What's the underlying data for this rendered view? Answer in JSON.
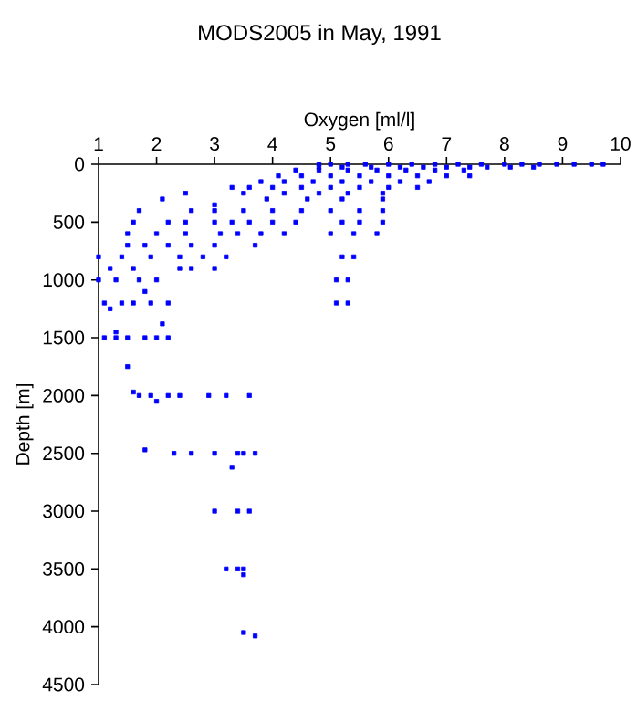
{
  "chart_data": {
    "type": "scatter",
    "title": "MODS2005 in May, 1991",
    "xlabel": "Oxygen [ml/l]",
    "ylabel": "Depth [m]",
    "xlim": [
      1,
      10
    ],
    "ylim": [
      4500,
      0
    ],
    "xticks": [
      1,
      2,
      3,
      4,
      5,
      6,
      7,
      8,
      9,
      10
    ],
    "yticks": [
      0,
      500,
      1000,
      1500,
      2000,
      2500,
      3000,
      3500,
      4000,
      4500
    ],
    "grid": false,
    "marker": "square",
    "series": [
      {
        "color": "#0000ff",
        "x": [
          4.8,
          5.0,
          5.3,
          5.6,
          6.0,
          6.4,
          6.8,
          7.2,
          7.6,
          8.0,
          8.3,
          8.6,
          8.9,
          9.2,
          9.5,
          9.7,
          4.8,
          5.2,
          5.7,
          6.2,
          6.6,
          7.0,
          7.4,
          7.7,
          8.1,
          8.5,
          4.4,
          4.8,
          5.3,
          5.8,
          6.3,
          6.8,
          7.3,
          4.1,
          4.5,
          5.0,
          5.5,
          6.0,
          6.5,
          7.0,
          7.4,
          3.8,
          4.2,
          4.7,
          5.2,
          5.7,
          6.2,
          6.7,
          3.3,
          3.6,
          4.0,
          4.5,
          5.0,
          5.5,
          6.0,
          6.5,
          2.5,
          3.5,
          4.2,
          4.8,
          5.3,
          5.9,
          2.1,
          3.9,
          4.6,
          5.2,
          5.9,
          3.0,
          1.7,
          2.6,
          3.0,
          3.5,
          4.0,
          4.5,
          5.0,
          5.5,
          5.9,
          1.6,
          2.2,
          2.5,
          3.0,
          3.3,
          3.6,
          4.0,
          4.4,
          5.2,
          5.5,
          5.9,
          1.5,
          2.0,
          2.5,
          3.1,
          3.4,
          3.8,
          4.2,
          5.0,
          5.4,
          5.8,
          1.5,
          1.8,
          2.2,
          2.6,
          3.0,
          3.7,
          1.0,
          1.4,
          1.9,
          2.4,
          2.8,
          3.2,
          5.2,
          5.4,
          1.2,
          1.6,
          2.4,
          2.6,
          3.0,
          1.0,
          1.3,
          1.7,
          2.0,
          5.1,
          5.3,
          1.8,
          1.1,
          1.4,
          1.6,
          1.9,
          2.2,
          5.1,
          5.3,
          1.2,
          2.1,
          1.1,
          1.3,
          1.5,
          1.8,
          2.0,
          2.2,
          1.3,
          1.5,
          1.6,
          1.7,
          1.9,
          2.2,
          2.4,
          2.9,
          3.2,
          3.6,
          2.0,
          1.8,
          2.3,
          2.6,
          3.0,
          3.4,
          3.5,
          3.7,
          3.3,
          3.0,
          3.4,
          3.6,
          3.2,
          3.4,
          3.5,
          3.5,
          3.5,
          3.7
        ],
        "values": [
          0,
          0,
          0,
          0,
          0,
          0,
          0,
          0,
          0,
          0,
          0,
          0,
          0,
          0,
          0,
          0,
          25,
          25,
          25,
          25,
          25,
          25,
          25,
          25,
          25,
          25,
          50,
          50,
          50,
          50,
          50,
          50,
          50,
          100,
          100,
          100,
          100,
          100,
          100,
          100,
          100,
          150,
          150,
          150,
          150,
          150,
          150,
          150,
          200,
          200,
          200,
          200,
          200,
          200,
          200,
          200,
          250,
          250,
          250,
          250,
          250,
          250,
          300,
          300,
          300,
          300,
          300,
          350,
          400,
          400,
          400,
          400,
          400,
          400,
          400,
          400,
          400,
          500,
          500,
          500,
          500,
          500,
          500,
          500,
          500,
          500,
          500,
          500,
          600,
          600,
          600,
          600,
          600,
          600,
          600,
          600,
          600,
          600,
          700,
          700,
          700,
          700,
          700,
          700,
          800,
          800,
          800,
          800,
          800,
          800,
          800,
          800,
          900,
          900,
          900,
          900,
          900,
          1000,
          1000,
          1000,
          1000,
          1000,
          1000,
          1100,
          1200,
          1200,
          1200,
          1200,
          1200,
          1200,
          1200,
          1250,
          1380,
          1500,
          1500,
          1500,
          1500,
          1500,
          1500,
          1450,
          1750,
          1970,
          2000,
          2000,
          2000,
          2000,
          2000,
          2000,
          2000,
          2050,
          2470,
          2500,
          2500,
          2500,
          2500,
          2500,
          2500,
          2620,
          3000,
          3000,
          3000,
          3500,
          3500,
          3500,
          3550,
          4050,
          4080
        ]
      }
    ]
  }
}
